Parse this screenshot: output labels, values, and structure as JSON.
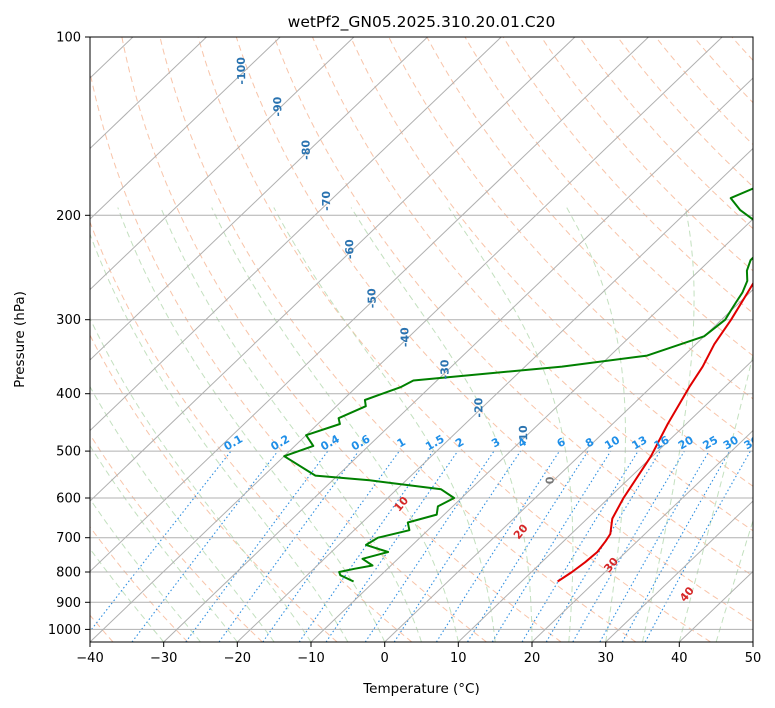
{
  "chart_data": {
    "type": "line",
    "title": "wetPf2_GN05.2025.310.20.01.C20",
    "xlabel": "Temperature (°C)",
    "ylabel": "Pressure (hPa)",
    "xlim": [
      -40,
      50
    ],
    "ylim": [
      1050,
      100
    ],
    "y_scale": "log",
    "skew": "skew-T log-p",
    "grid": true,
    "x_ticks": [
      "−40",
      "−30",
      "−20",
      "−10",
      "0",
      "10",
      "20",
      "30",
      "40",
      "50"
    ],
    "y_ticks": [
      "100",
      "200",
      "300",
      "400",
      "500",
      "600",
      "700",
      "800",
      "900",
      "1000"
    ],
    "colors": {
      "temperature": "#e00000",
      "dewpoint": "#008000",
      "isotherm_labels": "#2a73b0",
      "mixing_ratio_labels": "#1f8fe8",
      "moist_adiabat_labels": "#d62728",
      "zero_label": "#777777",
      "grid": "#b0b0b0"
    },
    "series": [
      {
        "name": "",
        "color": "#e00000",
        "x": [
          14.9,
          15.5,
          15.9,
          16.1,
          15.7,
          15.3,
          13.4,
          12.0,
          11.3,
          9.8,
          7.5,
          5.2,
          4.1,
          2.5,
          1.3,
          -0.3,
          -2.1,
          -3.9,
          -4.2,
          -4.2,
          0.0,
          6.5,
          9.8,
          10.8,
          12.5,
          16.5,
          20.0,
          24.0,
          28.0
        ],
        "y": [
          830,
          800,
          770,
          740,
          710,
          690,
          650,
          600,
          570,
          510,
          450,
          390,
          360,
          330,
          300,
          270,
          240,
          212,
          207,
          205,
          200,
          186,
          180,
          170,
          150,
          128,
          115,
          105,
          100
        ]
      },
      {
        "name": "",
        "color": "#008000",
        "x": [
          -12.8,
          -15.5,
          -16.1,
          -14.5,
          -12.5,
          -14.8,
          -12.3,
          -16.3,
          -15.7,
          -12.5,
          -13.8,
          -11.0,
          -12.0,
          -11.0,
          -14.0,
          -25.0,
          -33.0,
          -40.0,
          -37.5,
          -40.0,
          -37.0,
          -38.0,
          -36.0,
          -37.0,
          -34.0,
          -33.2,
          -15.0,
          -5.0,
          0.0,
          0.5,
          0.0,
          -0.5,
          -1.0,
          -2.0,
          -3.5,
          -4.5,
          -4.5,
          -5.2,
          -8.0,
          -13.0,
          -16.0,
          -13.0,
          -10.0,
          -8.0,
          -6.5,
          -3.0,
          3.0
        ],
        "y": [
          830,
          810,
          800,
          790,
          780,
          760,
          740,
          720,
          700,
          680,
          660,
          640,
          620,
          600,
          580,
          560,
          550,
          510,
          490,
          470,
          450,
          440,
          420,
          410,
          390,
          380,
          360,
          345,
          320,
          300,
          290,
          280,
          270,
          258,
          248,
          238,
          228,
          218,
          208,
          196,
          187,
          175,
          155,
          140,
          125,
          112,
          100
        ]
      }
    ],
    "isotherm_labels": [
      "-100",
      "-90",
      "-80",
      "-70",
      "-60",
      "-50",
      "-40",
      "-30",
      "-20",
      "-10",
      "0"
    ],
    "mixing_ratio_labels": [
      "0.1",
      "0.2",
      "0.4",
      "0.6",
      "1",
      "1.5",
      "2",
      "3",
      "4",
      "6",
      "8",
      "10",
      "13",
      "16",
      "20",
      "25",
      "30",
      "36"
    ],
    "moist_adiabat_labels": [
      "10",
      "20",
      "30",
      "40"
    ]
  }
}
